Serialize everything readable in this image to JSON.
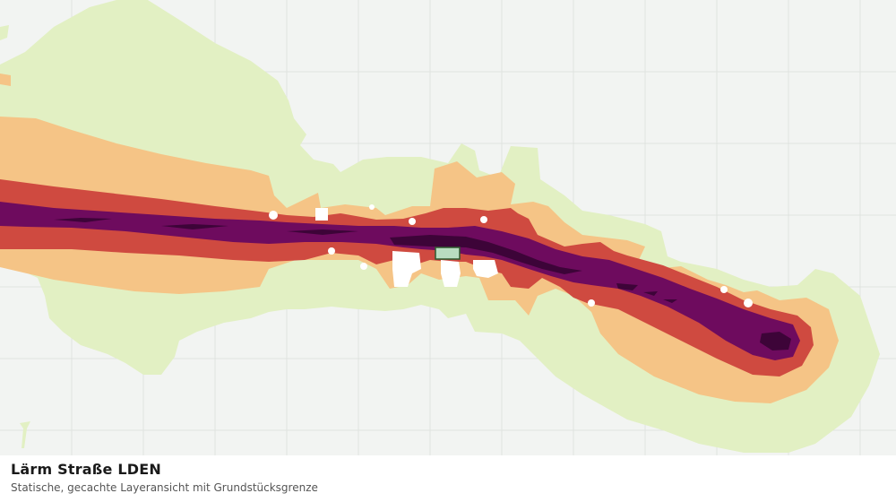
{
  "map": {
    "title": "Lärm Straße LDEN",
    "subtitle": "Statische, gecachte Layeransicht mit Grundstücksgrenze",
    "colors": {
      "background": "#f2f4f2",
      "grid": "#e0e3e0",
      "band_lowest": "#e2f0c3",
      "band_low": "#f5c486",
      "band_mid": "#cf4a40",
      "band_high": "#6e0b5e",
      "band_highest": "#3d0438",
      "parcel_fill": "#b9dcc0",
      "parcel_stroke": "#2f5a2f"
    }
  }
}
